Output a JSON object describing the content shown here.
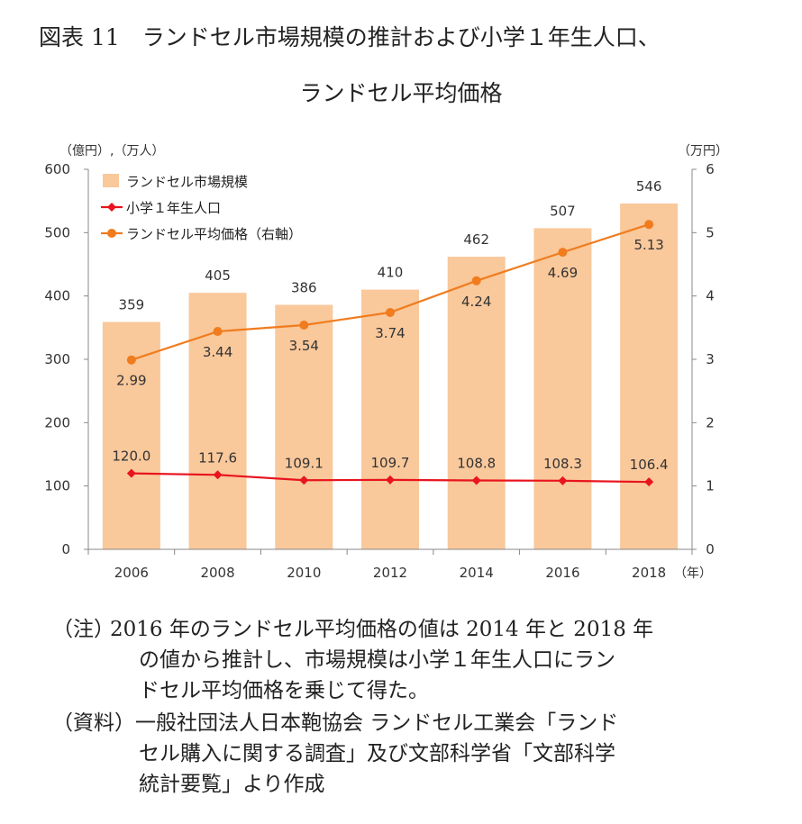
{
  "title_line1": "図表 11　ランドセル市場規模の推計および小学１年生人口、",
  "title_line2": "ランドセル平均価格",
  "chart_data": {
    "type": "bar",
    "categories": [
      "2006",
      "2008",
      "2010",
      "2012",
      "2014",
      "2016",
      "2018"
    ],
    "xlabel_unit": "（年）",
    "ylabel_left": "（億円）,（万人）",
    "ylabel_right": "（万円）",
    "ylim_left": [
      0,
      600
    ],
    "ylim_right": [
      0,
      6
    ],
    "yticks_left": [
      "0",
      "100",
      "200",
      "300",
      "400",
      "500",
      "600"
    ],
    "yticks_right": [
      "0",
      "1",
      "2",
      "3",
      "4",
      "5",
      "6"
    ],
    "legend_position": "top-left",
    "series": [
      {
        "name": "ランドセル市場規模",
        "type": "bar",
        "axis": "left",
        "values": [
          359,
          405,
          386,
          410,
          462,
          507,
          546
        ],
        "labels": [
          "359",
          "405",
          "386",
          "410",
          "462",
          "507",
          "546"
        ],
        "color": "#F9C89B"
      },
      {
        "name": "小学１年生人口",
        "type": "line",
        "axis": "left",
        "values": [
          120.0,
          117.6,
          109.1,
          109.7,
          108.8,
          108.3,
          106.4
        ],
        "labels": [
          "120.0",
          "117.6",
          "109.1",
          "109.7",
          "108.8",
          "108.3",
          "106.4"
        ],
        "color": "#E8141E"
      },
      {
        "name": "ランドセル平均価格（右軸）",
        "type": "line",
        "axis": "right",
        "values": [
          2.99,
          3.44,
          3.54,
          3.74,
          4.24,
          4.69,
          5.13
        ],
        "labels": [
          "2.99",
          "3.44",
          "3.54",
          "3.74",
          "4.24",
          "4.69",
          "5.13"
        ],
        "color": "#F07C1E"
      }
    ]
  },
  "notes": [
    {
      "label": "（注）",
      "lines": [
        "2016 年のランドセル平均価格の値は 2014 年と 2018 年",
        "の値から推計し、市場規模は小学１年生人口にラン",
        "ドセル平均価格を乗じて得た。"
      ]
    },
    {
      "label": "（資料）",
      "lines": [
        "一般社団法人日本鞄協会 ランドセル工業会「ランド",
        "セル購入に関する調査」及び文部科学省「文部科学",
        "統計要覧」より作成"
      ]
    }
  ]
}
